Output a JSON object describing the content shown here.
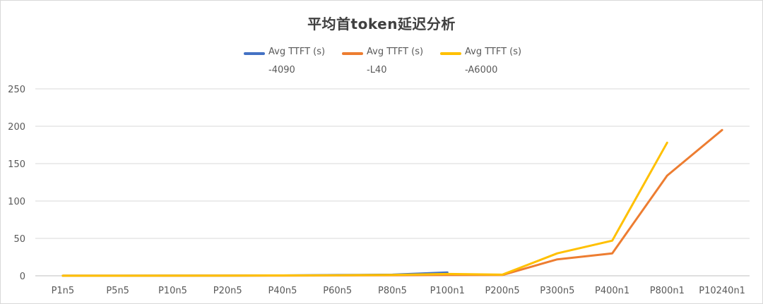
{
  "chart_data": {
    "type": "line",
    "title": "平均首token延迟分析",
    "categories": [
      "P1n5",
      "P5n5",
      "P10n5",
      "P20n5",
      "P40n5",
      "P60n5",
      "P80n5",
      "P100n1",
      "P200n5",
      "P300n5",
      "P400n1",
      "P800n1",
      "P10240n1"
    ],
    "ylim": [
      0,
      250
    ],
    "yticks": [
      0,
      50,
      100,
      150,
      200,
      250
    ],
    "grid": true,
    "legend_position": "top",
    "series": [
      {
        "name_line1": "Avg TTFT (s)",
        "name_line2": "-4090",
        "color": "#4472C4",
        "values": [
          0.1,
          0.1,
          0.2,
          0.3,
          0.5,
          1.0,
          1.5,
          4.5,
          null,
          null,
          null,
          null,
          null
        ]
      },
      {
        "name_line1": "Avg TTFT (s)",
        "name_line2": "-L40",
        "color": "#ED7D31",
        "values": [
          0.1,
          0.1,
          0.1,
          0.2,
          0.3,
          0.5,
          0.7,
          1.0,
          1.0,
          22,
          30,
          134,
          195
        ]
      },
      {
        "name_line1": "Avg TTFT (s)",
        "name_line2": "-A6000",
        "color": "#FFC000",
        "values": [
          0.1,
          0.1,
          0.2,
          0.3,
          0.5,
          0.8,
          1.2,
          2.5,
          1.5,
          30,
          47,
          178,
          null
        ]
      }
    ]
  }
}
